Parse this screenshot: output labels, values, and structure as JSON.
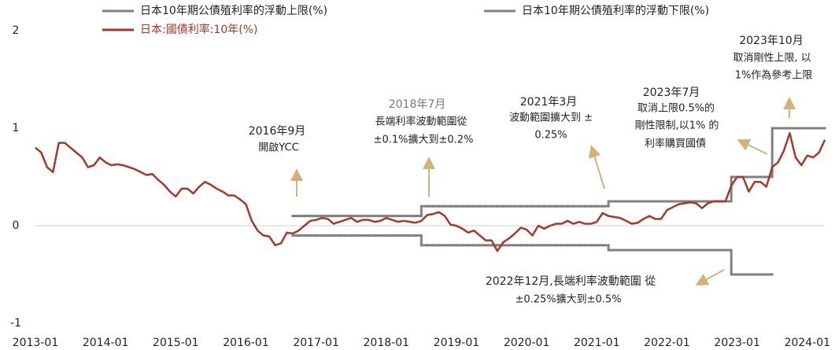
{
  "chart_data": {
    "type": "line",
    "x": [
      "2013-01",
      "2013-02",
      "2013-03",
      "2013-04",
      "2013-05",
      "2013-06",
      "2013-07",
      "2013-08",
      "2013-09",
      "2013-10",
      "2013-11",
      "2013-12",
      "2014-01",
      "2014-02",
      "2014-03",
      "2014-04",
      "2014-05",
      "2014-06",
      "2014-07",
      "2014-08",
      "2014-09",
      "2014-10",
      "2014-11",
      "2014-12",
      "2015-01",
      "2015-02",
      "2015-03",
      "2015-04",
      "2015-05",
      "2015-06",
      "2015-07",
      "2015-08",
      "2015-09",
      "2015-10",
      "2015-11",
      "2015-12",
      "2016-01",
      "2016-02",
      "2016-03",
      "2016-04",
      "2016-05",
      "2016-06",
      "2016-07",
      "2016-08",
      "2016-09",
      "2016-10",
      "2016-11",
      "2016-12",
      "2017-01",
      "2017-02",
      "2017-03",
      "2017-04",
      "2017-05",
      "2017-06",
      "2017-07",
      "2017-08",
      "2017-09",
      "2017-10",
      "2017-11",
      "2017-12",
      "2018-01",
      "2018-02",
      "2018-03",
      "2018-04",
      "2018-05",
      "2018-06",
      "2018-07",
      "2018-08",
      "2018-09",
      "2018-10",
      "2018-11",
      "2018-12",
      "2019-01",
      "2019-02",
      "2019-03",
      "2019-04",
      "2019-05",
      "2019-06",
      "2019-07",
      "2019-08",
      "2019-09",
      "2019-10",
      "2019-11",
      "2019-12",
      "2020-01",
      "2020-02",
      "2020-03",
      "2020-04",
      "2020-05",
      "2020-06",
      "2020-07",
      "2020-08",
      "2020-09",
      "2020-10",
      "2020-11",
      "2020-12",
      "2021-01",
      "2021-02",
      "2021-03",
      "2021-04",
      "2021-05",
      "2021-06",
      "2021-07",
      "2021-08",
      "2021-09",
      "2021-10",
      "2021-11",
      "2021-12",
      "2022-01",
      "2022-02",
      "2022-03",
      "2022-04",
      "2022-05",
      "2022-06",
      "2022-07",
      "2022-08",
      "2022-09",
      "2022-10",
      "2022-11",
      "2022-12",
      "2023-01",
      "2023-02",
      "2023-03",
      "2023-04",
      "2023-05",
      "2023-06",
      "2023-07",
      "2023-08",
      "2023-09",
      "2023-10",
      "2023-11",
      "2023-12",
      "2024-01",
      "2024-02",
      "2024-03",
      "2024-04"
    ],
    "series": [
      {
        "name": "日本10年期公債殖利率的浮動上限(%)",
        "color": "#808080",
        "drawstyle": "steps-post",
        "values": [
          null,
          null,
          null,
          null,
          null,
          null,
          null,
          null,
          null,
          null,
          null,
          null,
          null,
          null,
          null,
          null,
          null,
          null,
          null,
          null,
          null,
          null,
          null,
          null,
          null,
          null,
          null,
          null,
          null,
          null,
          null,
          null,
          null,
          null,
          null,
          null,
          null,
          null,
          null,
          null,
          null,
          null,
          null,
          null,
          0.1,
          0.1,
          0.1,
          0.1,
          0.1,
          0.1,
          0.1,
          0.1,
          0.1,
          0.1,
          0.1,
          0.1,
          0.1,
          0.1,
          0.1,
          0.1,
          0.1,
          0.1,
          0.1,
          0.1,
          0.1,
          0.1,
          0.2,
          0.2,
          0.2,
          0.2,
          0.2,
          0.2,
          0.2,
          0.2,
          0.2,
          0.2,
          0.2,
          0.2,
          0.2,
          0.2,
          0.2,
          0.2,
          0.2,
          0.2,
          0.2,
          0.2,
          0.2,
          0.2,
          0.2,
          0.2,
          0.2,
          0.2,
          0.2,
          0.2,
          0.2,
          0.2,
          0.2,
          0.2,
          0.25,
          0.25,
          0.25,
          0.25,
          0.25,
          0.25,
          0.25,
          0.25,
          0.25,
          0.25,
          0.25,
          0.25,
          0.25,
          0.25,
          0.25,
          0.25,
          0.25,
          0.25,
          0.25,
          0.25,
          0.25,
          0.5,
          0.5,
          0.5,
          0.5,
          0.5,
          0.5,
          0.5,
          1,
          1,
          1,
          1,
          1,
          1,
          1,
          1,
          1,
          1
        ]
      },
      {
        "name": "日本10年期公債殖利率的浮動下限(%)",
        "color": "#808080",
        "drawstyle": "steps-post",
        "values": [
          null,
          null,
          null,
          null,
          null,
          null,
          null,
          null,
          null,
          null,
          null,
          null,
          null,
          null,
          null,
          null,
          null,
          null,
          null,
          null,
          null,
          null,
          null,
          null,
          null,
          null,
          null,
          null,
          null,
          null,
          null,
          null,
          null,
          null,
          null,
          null,
          null,
          null,
          null,
          null,
          null,
          null,
          null,
          null,
          -0.1,
          -0.1,
          -0.1,
          -0.1,
          -0.1,
          -0.1,
          -0.1,
          -0.1,
          -0.1,
          -0.1,
          -0.1,
          -0.1,
          -0.1,
          -0.1,
          -0.1,
          -0.1,
          -0.1,
          -0.1,
          -0.1,
          -0.1,
          -0.1,
          -0.1,
          -0.2,
          -0.2,
          -0.2,
          -0.2,
          -0.2,
          -0.2,
          -0.2,
          -0.2,
          -0.2,
          -0.2,
          -0.2,
          -0.2,
          -0.2,
          -0.2,
          -0.2,
          -0.2,
          -0.2,
          -0.2,
          -0.2,
          -0.2,
          -0.2,
          -0.2,
          -0.2,
          -0.2,
          -0.2,
          -0.2,
          -0.2,
          -0.2,
          -0.2,
          -0.2,
          -0.2,
          -0.2,
          -0.25,
          -0.25,
          -0.25,
          -0.25,
          -0.25,
          -0.25,
          -0.25,
          -0.25,
          -0.25,
          -0.25,
          -0.25,
          -0.25,
          -0.25,
          -0.25,
          -0.25,
          -0.25,
          -0.25,
          -0.25,
          -0.25,
          -0.25,
          -0.25,
          -0.5,
          -0.5,
          -0.5,
          -0.5,
          -0.5,
          -0.5,
          -0.5,
          -0.5,
          null,
          null,
          null,
          null,
          null,
          null,
          null,
          null,
          null
        ]
      },
      {
        "name": "日本:國債利率:10年(%)",
        "color": "#a5372b",
        "drawstyle": "line",
        "values": [
          0.8,
          0.75,
          0.6,
          0.55,
          0.85,
          0.85,
          0.8,
          0.75,
          0.7,
          0.6,
          0.62,
          0.7,
          0.65,
          0.62,
          0.63,
          0.62,
          0.6,
          0.58,
          0.55,
          0.52,
          0.53,
          0.47,
          0.42,
          0.35,
          0.3,
          0.38,
          0.38,
          0.33,
          0.4,
          0.45,
          0.42,
          0.38,
          0.35,
          0.31,
          0.31,
          0.27,
          0.22,
          0.05,
          -0.05,
          -0.1,
          -0.11,
          -0.2,
          -0.18,
          -0.07,
          -0.08,
          -0.05,
          0.0,
          0.05,
          0.06,
          0.08,
          0.07,
          0.02,
          0.04,
          0.06,
          0.08,
          0.04,
          0.06,
          0.06,
          0.04,
          0.05,
          0.08,
          0.06,
          0.04,
          0.05,
          0.04,
          0.03,
          0.05,
          0.11,
          0.12,
          0.14,
          0.1,
          0.01,
          0.0,
          -0.03,
          -0.07,
          -0.05,
          -0.1,
          -0.15,
          -0.15,
          -0.26,
          -0.17,
          -0.13,
          -0.08,
          -0.02,
          -0.04,
          -0.1,
          0.0,
          -0.03,
          0.0,
          0.02,
          0.02,
          0.05,
          0.02,
          0.04,
          0.02,
          0.02,
          0.04,
          0.13,
          0.1,
          0.09,
          0.08,
          0.05,
          0.02,
          0.03,
          0.07,
          0.1,
          0.07,
          0.07,
          0.16,
          0.19,
          0.22,
          0.23,
          0.24,
          0.23,
          0.18,
          0.23,
          0.25,
          0.25,
          0.25,
          0.41,
          0.5,
          0.5,
          0.35,
          0.45,
          0.45,
          0.4,
          0.6,
          0.65,
          0.77,
          0.95,
          0.7,
          0.62,
          0.72,
          0.7,
          0.75,
          0.88
        ]
      }
    ],
    "xlim": [
      "2013-01",
      "2024-04"
    ],
    "xticks": [
      "2013-01",
      "2014-01",
      "2015-01",
      "2016-01",
      "2017-01",
      "2018-01",
      "2019-01",
      "2020-01",
      "2021-01",
      "2022-01",
      "2023-01",
      "2024-01"
    ],
    "ylim": [
      -1,
      2
    ],
    "yticks": [
      2,
      1,
      0,
      -1
    ],
    "annotations": [
      {
        "lines": [
          "2016年9月",
          "開啟YCC"
        ]
      },
      {
        "lines": [
          "2018年7月",
          "長端利率波動範圍從",
          "±0.1%擴大到±0.2%"
        ]
      },
      {
        "lines": [
          "2021年3月",
          "波動範圍擴大到 ±",
          "0.25%"
        ]
      },
      {
        "lines": [
          "2023年7月",
          "取消上限0.5%的",
          "剛性限制,以1% 的",
          "利率購買國債"
        ]
      },
      {
        "lines": [
          "2023年10月",
          "取消剛性上限, 以",
          "1%作為參考上限"
        ]
      },
      {
        "lines": [
          "2022年12月,長端利率波動範圍 從",
          "±0.25%擴大到±0.5%"
        ]
      }
    ]
  }
}
